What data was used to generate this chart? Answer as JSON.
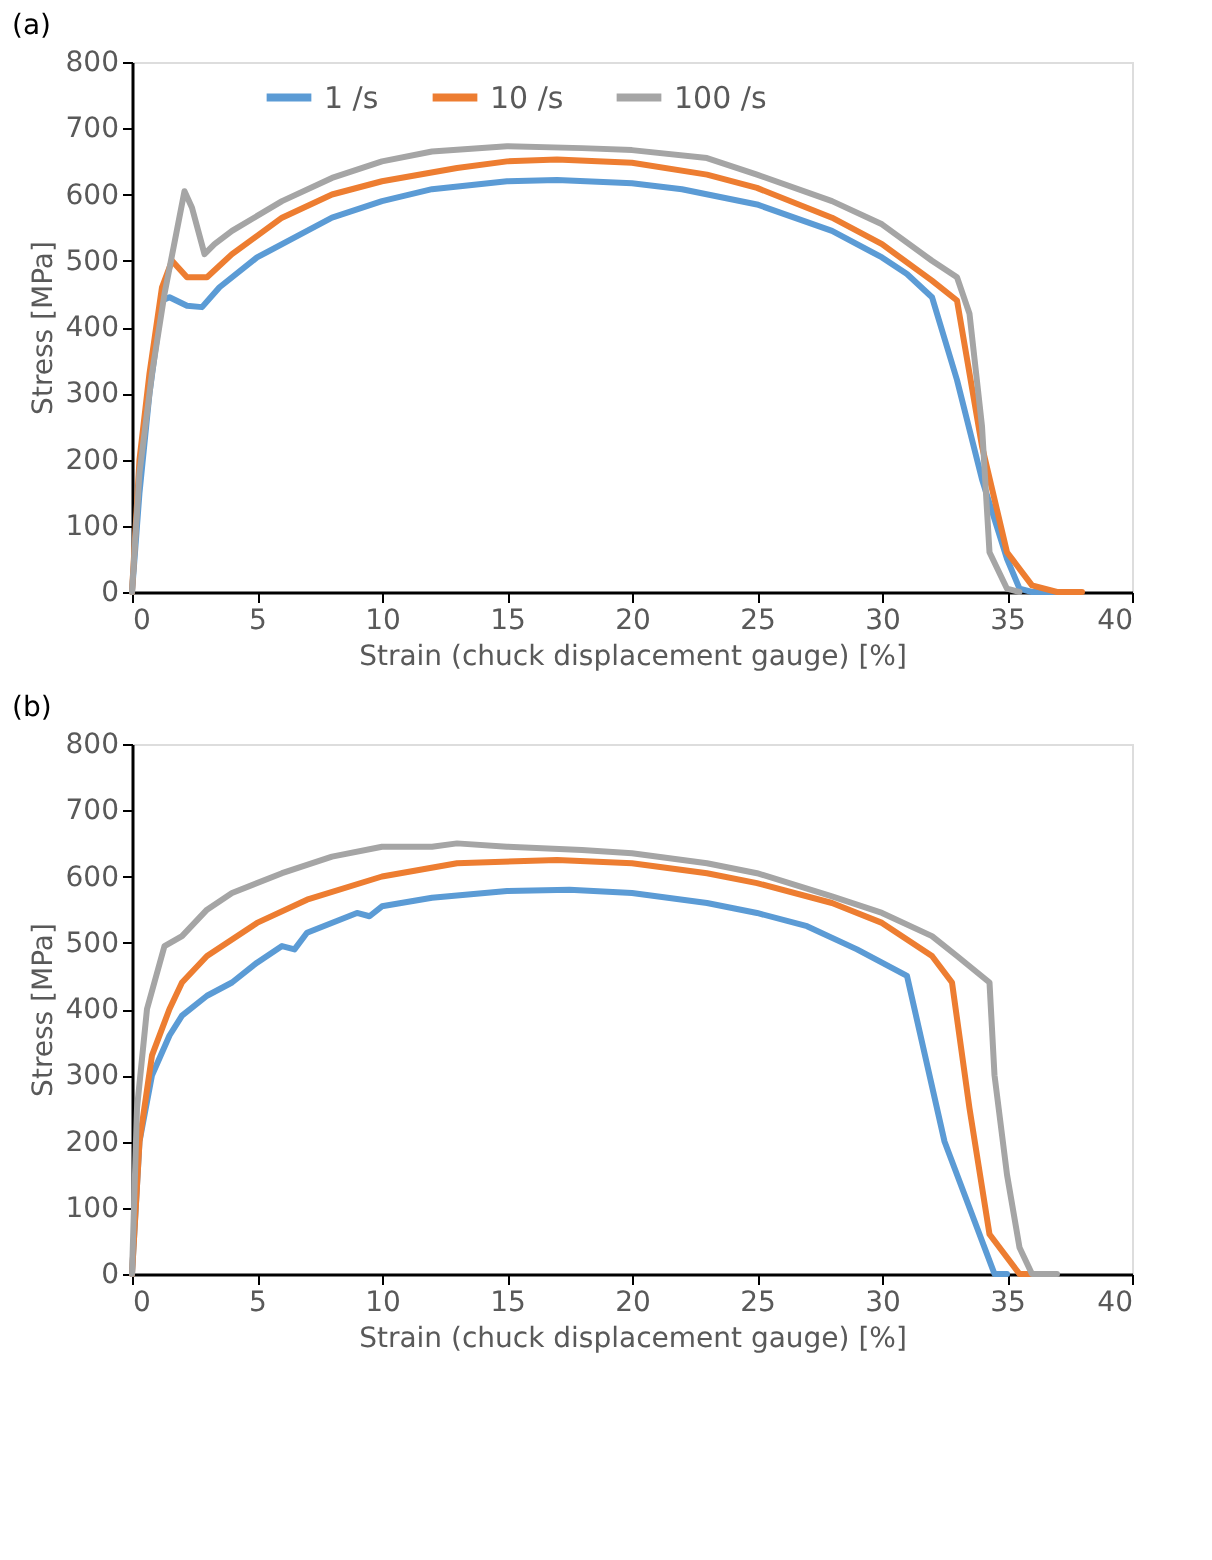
{
  "chart_data": [
    {
      "type": "line",
      "title": "(a)",
      "xlabel": "Strain (chuck displacement gauge) [%]",
      "ylabel": "Stress [MPa]",
      "xlim": [
        0,
        40
      ],
      "xticks": [
        0,
        5,
        10,
        15,
        20,
        25,
        30,
        35,
        40
      ],
      "ylim": [
        0,
        800
      ],
      "yticks": [
        0,
        100,
        200,
        300,
        400,
        500,
        600,
        700,
        800
      ],
      "grid": false,
      "legend": "top",
      "marker": "none",
      "line_style": "solid",
      "series": [
        {
          "name": "1 /s",
          "color": "#5b9bd5",
          "x": [
            0,
            0.3,
            0.7,
            1.2,
            1.5,
            2.2,
            2.8,
            3.5,
            5,
            7,
            8,
            10,
            12,
            15,
            17,
            20,
            22,
            25,
            28,
            30,
            31,
            32,
            33,
            34,
            35,
            35.5,
            36,
            37
          ],
          "values": [
            0,
            150,
            300,
            440,
            445,
            432,
            430,
            460,
            505,
            545,
            565,
            590,
            608,
            620,
            622,
            617,
            608,
            585,
            545,
            505,
            480,
            445,
            320,
            170,
            50,
            5,
            0,
            0
          ]
        },
        {
          "name": "10 /s",
          "color": "#ed7d31",
          "x": [
            0,
            0.3,
            0.7,
            1.2,
            1.6,
            2.2,
            3,
            4,
            6,
            8,
            10,
            13,
            15,
            17,
            20,
            23,
            25,
            28,
            30,
            32,
            33,
            34,
            35,
            36,
            37,
            38
          ],
          "values": [
            0,
            200,
            330,
            460,
            500,
            475,
            475,
            510,
            565,
            600,
            620,
            640,
            650,
            653,
            648,
            630,
            610,
            565,
            525,
            470,
            440,
            220,
            60,
            10,
            0,
            0
          ]
        },
        {
          "name": "100 /s",
          "color": "#a5a5a5",
          "x": [
            0,
            0.3,
            0.8,
            1.3,
            2.1,
            2.4,
            2.9,
            3.3,
            4,
            6,
            8,
            10,
            12,
            15,
            18,
            20,
            23,
            25,
            28,
            30,
            32,
            33,
            33.5,
            34,
            34.3,
            35,
            35.5
          ],
          "values": [
            0,
            180,
            330,
            450,
            605,
            580,
            510,
            525,
            545,
            590,
            625,
            650,
            665,
            673,
            670,
            667,
            655,
            630,
            590,
            555,
            500,
            475,
            420,
            250,
            60,
            5,
            0
          ]
        }
      ]
    },
    {
      "type": "line",
      "title": "(b)",
      "xlabel": "Strain (chuck displacement gauge) [%]",
      "ylabel": "Stress [MPa]",
      "xlim": [
        0,
        40
      ],
      "xticks": [
        0,
        5,
        10,
        15,
        20,
        25,
        30,
        35,
        40
      ],
      "ylim": [
        0,
        800
      ],
      "yticks": [
        0,
        100,
        200,
        300,
        400,
        500,
        600,
        700,
        800
      ],
      "grid": false,
      "legend": "top",
      "marker": "none",
      "line_style": "solid",
      "series": [
        {
          "name": "1 /s",
          "color": "#5b9bd5",
          "x": [
            0,
            0.3,
            0.8,
            1.5,
            2,
            3,
            4,
            5,
            6,
            6.5,
            7,
            9,
            9.5,
            10,
            12,
            15,
            17.5,
            20,
            23,
            25,
            27,
            29,
            30,
            31,
            32.5,
            34.5,
            35
          ],
          "values": [
            0,
            200,
            300,
            360,
            390,
            420,
            440,
            470,
            495,
            490,
            515,
            545,
            540,
            555,
            568,
            578,
            580,
            575,
            560,
            545,
            525,
            490,
            470,
            450,
            200,
            0,
            0
          ]
        },
        {
          "name": "10 /s",
          "color": "#ed7d31",
          "x": [
            0,
            0.3,
            0.8,
            1.5,
            2,
            3,
            5,
            7,
            10,
            13,
            17,
            20,
            23,
            25,
            28,
            30,
            32,
            32.8,
            33.5,
            34.3,
            35.5,
            36
          ],
          "values": [
            0,
            200,
            330,
            400,
            440,
            480,
            530,
            565,
            600,
            620,
            625,
            620,
            605,
            590,
            560,
            530,
            480,
            440,
            250,
            60,
            0,
            0
          ]
        },
        {
          "name": "100 /s",
          "color": "#a5a5a5",
          "x": [
            0,
            0.2,
            0.6,
            1.3,
            2,
            3,
            4,
            6,
            8,
            10,
            12,
            13,
            15,
            18,
            20,
            23,
            25,
            28,
            30,
            32,
            33,
            34.3,
            34.5,
            35,
            35.5,
            36,
            37
          ],
          "values": [
            0,
            250,
            400,
            495,
            510,
            550,
            575,
            605,
            630,
            645,
            645,
            650,
            645,
            640,
            635,
            620,
            605,
            570,
            545,
            510,
            480,
            440,
            300,
            150,
            40,
            0,
            0
          ]
        }
      ]
    }
  ]
}
